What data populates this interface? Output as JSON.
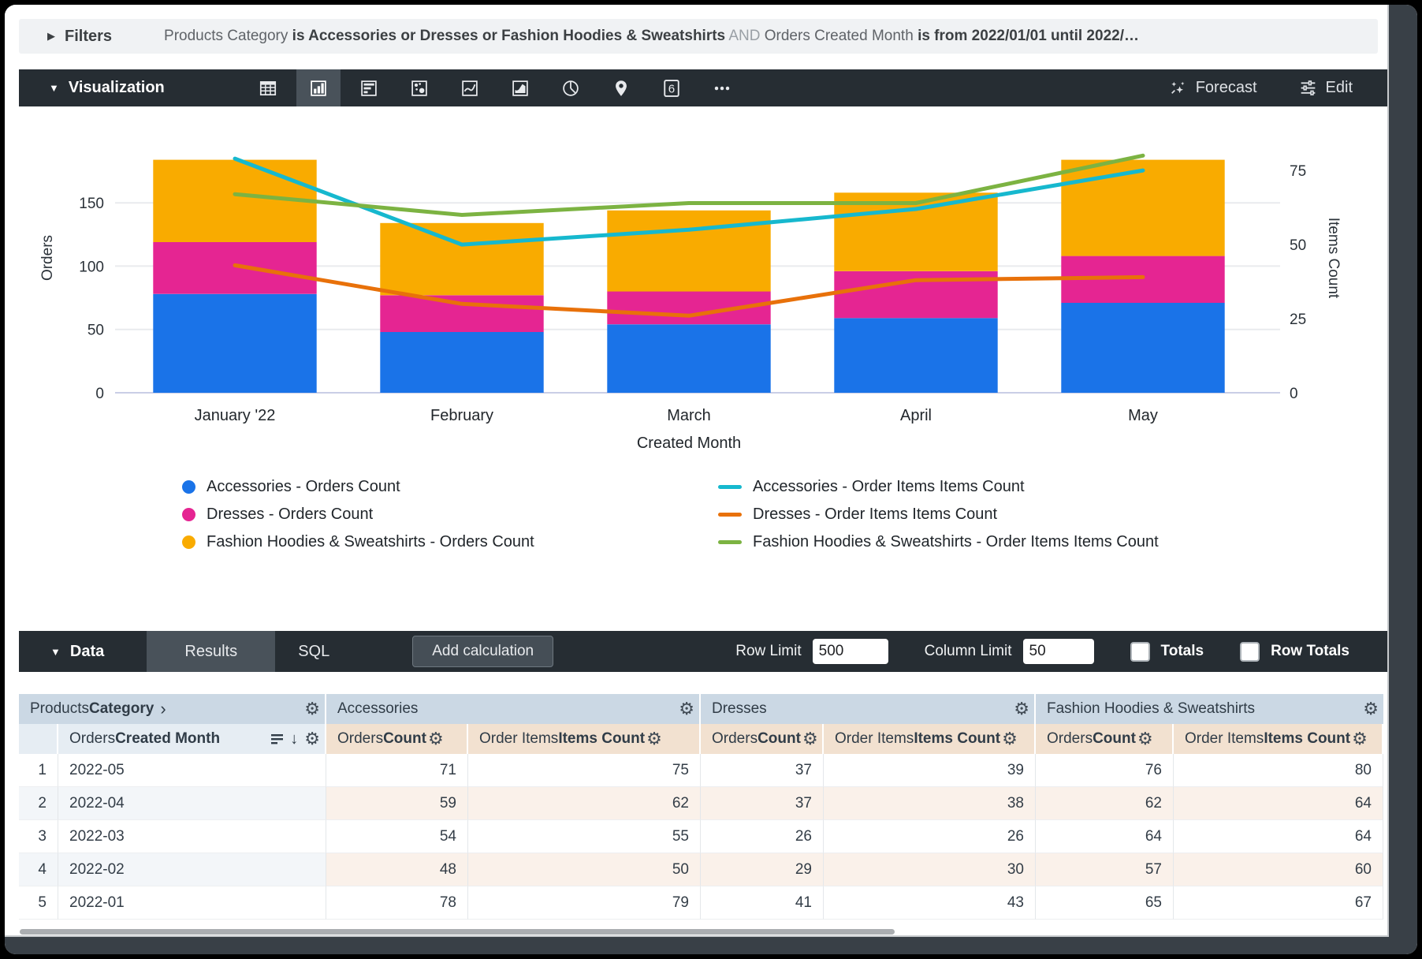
{
  "filters": {
    "toggle_label": "Filters",
    "segments": [
      {
        "text": "Products Category ",
        "style": "dim"
      },
      {
        "text": "is Accessories or Dresses or Fashion Hoodies & Sweatshirts",
        "style": "strong"
      },
      {
        "text": " AND ",
        "style": "faint"
      },
      {
        "text": "Orders Created Month ",
        "style": "dim"
      },
      {
        "text": "is from 2022/01/01 until 2022/…",
        "style": "strong"
      }
    ]
  },
  "toolbar": {
    "section_label": "Visualization",
    "forecast_label": "Forecast",
    "edit_label": "Edit",
    "single_value_glyph": "6",
    "viz_types": [
      "table",
      "column",
      "bar",
      "scatter",
      "line",
      "area",
      "pie",
      "map",
      "single-value",
      "more"
    ],
    "selected_viz": "column"
  },
  "chart_data": {
    "type": "combo-stacked-bar-line",
    "categories": [
      "January '22",
      "February",
      "March",
      "April",
      "May"
    ],
    "xlabel": "Created Month",
    "left_axis": {
      "label": "Orders",
      "ticks": [
        0,
        50,
        100,
        150
      ],
      "max": 213
    },
    "right_axis": {
      "label": "Items Count",
      "ticks": [
        0,
        25,
        50,
        75
      ],
      "max": 91
    },
    "bar_series": [
      {
        "name": "Accessories - Orders Count",
        "color": "#1A73E8",
        "values": [
          78,
          48,
          54,
          59,
          71
        ]
      },
      {
        "name": "Dresses - Orders Count",
        "color": "#E52592",
        "values": [
          41,
          29,
          26,
          37,
          37
        ]
      },
      {
        "name": "Fashion Hoodies & Sweatshirts - Orders Count",
        "color": "#F9AB00",
        "values": [
          65,
          57,
          64,
          62,
          76
        ]
      }
    ],
    "line_series": [
      {
        "name": "Accessories - Order Items Items Count",
        "color": "#16B8CE",
        "values": [
          79,
          50,
          55,
          62,
          75
        ]
      },
      {
        "name": "Dresses - Order Items Items Count",
        "color": "#E8710A",
        "values": [
          43,
          30,
          26,
          38,
          39
        ]
      },
      {
        "name": "Fashion Hoodies & Sweatshirts - Order Items Items Count",
        "color": "#7CB342",
        "values": [
          67,
          60,
          64,
          64,
          80
        ]
      }
    ]
  },
  "data_panel": {
    "section_label": "Data",
    "tabs": [
      {
        "label": "Results",
        "active": true
      },
      {
        "label": "SQL",
        "active": false
      }
    ],
    "add_calculation_label": "Add calculation",
    "row_limit_label": "Row Limit",
    "row_limit_value": "500",
    "column_limit_label": "Column Limit",
    "column_limit_value": "50",
    "totals_label": "Totals",
    "totals_checked": false,
    "row_totals_label": "Row Totals",
    "row_totals_checked": false
  },
  "table": {
    "groups": [
      {
        "prefix": "Products ",
        "bold": "Category",
        "chevron": "›"
      },
      {
        "label": "Accessories"
      },
      {
        "label": "Dresses"
      },
      {
        "label": "Fashion Hoodies & Sweatshirts"
      }
    ],
    "dimension_header": {
      "prefix": "Orders ",
      "bold": "Created Month"
    },
    "measure_headers": [
      {
        "prefix": "Orders ",
        "bold": "Count"
      },
      {
        "prefix": "Order Items ",
        "bold": "Items Count"
      },
      {
        "prefix": "Orders ",
        "bold": "Count"
      },
      {
        "prefix": "Order Items ",
        "bold": "Items Count"
      },
      {
        "prefix": "Orders ",
        "bold": "Count"
      },
      {
        "prefix": "Order Items ",
        "bold": "Items Count"
      }
    ],
    "rows": [
      {
        "num": "1",
        "month": "2022-05",
        "values": [
          "71",
          "75",
          "37",
          "39",
          "76",
          "80"
        ]
      },
      {
        "num": "2",
        "month": "2022-04",
        "values": [
          "59",
          "62",
          "37",
          "38",
          "62",
          "64"
        ]
      },
      {
        "num": "3",
        "month": "2022-03",
        "values": [
          "54",
          "55",
          "26",
          "26",
          "64",
          "64"
        ]
      },
      {
        "num": "4",
        "month": "2022-02",
        "values": [
          "48",
          "50",
          "29",
          "30",
          "57",
          "60"
        ]
      },
      {
        "num": "5",
        "month": "2022-01",
        "values": [
          "78",
          "79",
          "41",
          "43",
          "65",
          "67"
        ]
      }
    ]
  }
}
